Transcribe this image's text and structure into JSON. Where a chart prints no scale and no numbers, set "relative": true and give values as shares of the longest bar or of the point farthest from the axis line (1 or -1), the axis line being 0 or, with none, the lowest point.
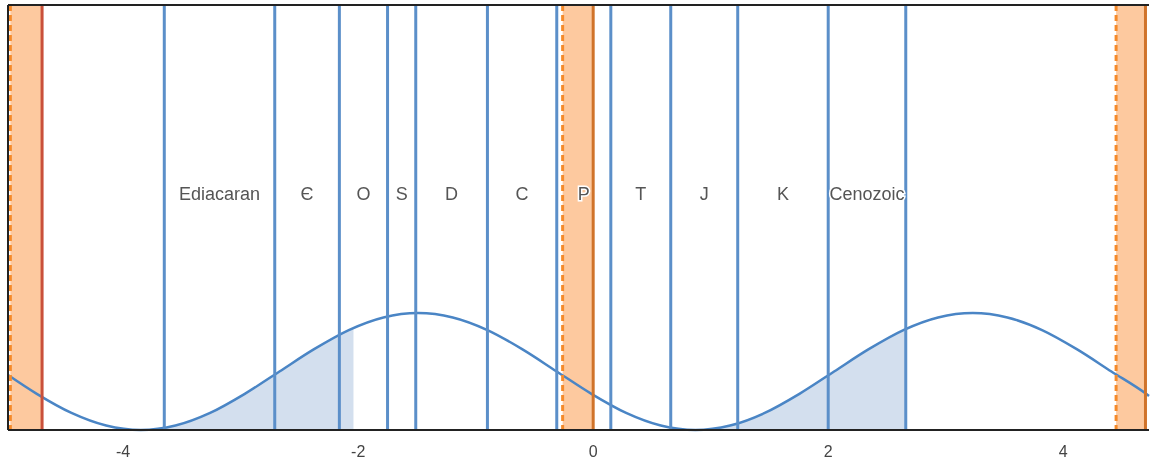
{
  "chart_data": {
    "type": "line",
    "relative": true,
    "xlim": [
      -4.98,
      4.73
    ],
    "xticks": [
      -4,
      -2,
      0,
      2,
      4
    ],
    "grid": false,
    "series": [
      {
        "type": "area",
        "color": "#d3dfee",
        "x": [
          -3.85,
          -3.555,
          -3.26,
          -2.965,
          -2.67,
          -2.375,
          -2.04
        ],
        "values": [
          0,
          0.038,
          0.146,
          0.309,
          0.5,
          0.691,
          0.871
        ]
      },
      {
        "type": "area",
        "color": "#d3dfee",
        "x": [
          0.87,
          1.165,
          1.46,
          1.755,
          2.05,
          2.345,
          2.66
        ],
        "values": [
          0,
          0.038,
          0.146,
          0.309,
          0.5,
          0.691,
          0.863
        ]
      },
      {
        "type": "line",
        "color": "#4a85c5",
        "x": [
          -4.98,
          -4.735,
          -4.44,
          -4.145,
          -3.85,
          -3.555,
          -3.26,
          -2.965,
          -2.67,
          -2.375,
          -2.08,
          -1.785,
          -1.49,
          -1.195,
          -0.9,
          -0.605,
          -0.31,
          -0.015,
          0.28,
          0.575,
          0.87,
          1.165,
          1.46,
          1.755,
          2.05,
          2.345,
          2.64,
          2.935,
          3.23,
          3.525,
          3.82,
          4.115,
          4.41,
          4.705,
          4.73
        ],
        "values": [
          0.47,
          0.309,
          0.146,
          0.038,
          0,
          0.038,
          0.146,
          0.309,
          0.5,
          0.691,
          0.854,
          0.962,
          1,
          0.962,
          0.854,
          0.691,
          0.5,
          0.309,
          0.146,
          0.038,
          0,
          0.038,
          0.146,
          0.309,
          0.5,
          0.691,
          0.854,
          0.962,
          1,
          0.962,
          0.854,
          0.691,
          0.5,
          0.309,
          0.29
        ]
      }
    ],
    "bands": [
      {
        "axis": "x",
        "from": -4.96,
        "to": -4.69,
        "color": "#fdc99f"
      },
      {
        "axis": "x",
        "from": -0.26,
        "to": 0,
        "color": "#fdc99f"
      },
      {
        "axis": "x",
        "from": 4.45,
        "to": 4.7,
        "color": "#fdc99f"
      }
    ],
    "ref_lines": [
      {
        "axis": "x",
        "value": -4.96,
        "color": "#f58a2a",
        "line_style": "dashed"
      },
      {
        "axis": "x",
        "value": -4.69,
        "color": "#c9503a",
        "line_style": "solid"
      },
      {
        "axis": "x",
        "value": -0.26,
        "color": "#f58a2a",
        "line_style": "dashed"
      },
      {
        "axis": "x",
        "value": 0,
        "color": "#d0732a",
        "line_style": "solid"
      },
      {
        "axis": "x",
        "value": 4.45,
        "color": "#f58a2a",
        "line_style": "dashed"
      },
      {
        "axis": "x",
        "value": 4.7,
        "color": "#d0732a",
        "line_style": "solid"
      },
      {
        "axis": "x",
        "value": -3.65,
        "color": "#5b8fc9",
        "line_style": "solid"
      },
      {
        "axis": "x",
        "value": -2.71,
        "color": "#5b8fc9",
        "line_style": "solid"
      },
      {
        "axis": "x",
        "value": -2.16,
        "color": "#5b8fc9",
        "line_style": "solid"
      },
      {
        "axis": "x",
        "value": -1.75,
        "color": "#5b8fc9",
        "line_style": "solid"
      },
      {
        "axis": "x",
        "value": -1.51,
        "color": "#5b8fc9",
        "line_style": "solid"
      },
      {
        "axis": "x",
        "value": -0.9,
        "color": "#5b8fc9",
        "line_style": "solid"
      },
      {
        "axis": "x",
        "value": -0.31,
        "color": "#5b8fc9",
        "line_style": "solid"
      },
      {
        "axis": "x",
        "value": 0.15,
        "color": "#5b8fc9",
        "line_style": "solid"
      },
      {
        "axis": "x",
        "value": 0.66,
        "color": "#5b8fc9",
        "line_style": "solid"
      },
      {
        "axis": "x",
        "value": 1.23,
        "color": "#5b8fc9",
        "line_style": "solid"
      },
      {
        "axis": "x",
        "value": 2.0,
        "color": "#5b8fc9",
        "line_style": "solid"
      },
      {
        "axis": "x",
        "value": 2.66,
        "color": "#5b8fc9",
        "line_style": "solid"
      }
    ],
    "annotations": [
      "Ediacaran",
      "Є",
      "O",
      "S",
      "D",
      "C",
      "P",
      "T",
      "J",
      "K",
      "Cenozoic"
    ]
  }
}
